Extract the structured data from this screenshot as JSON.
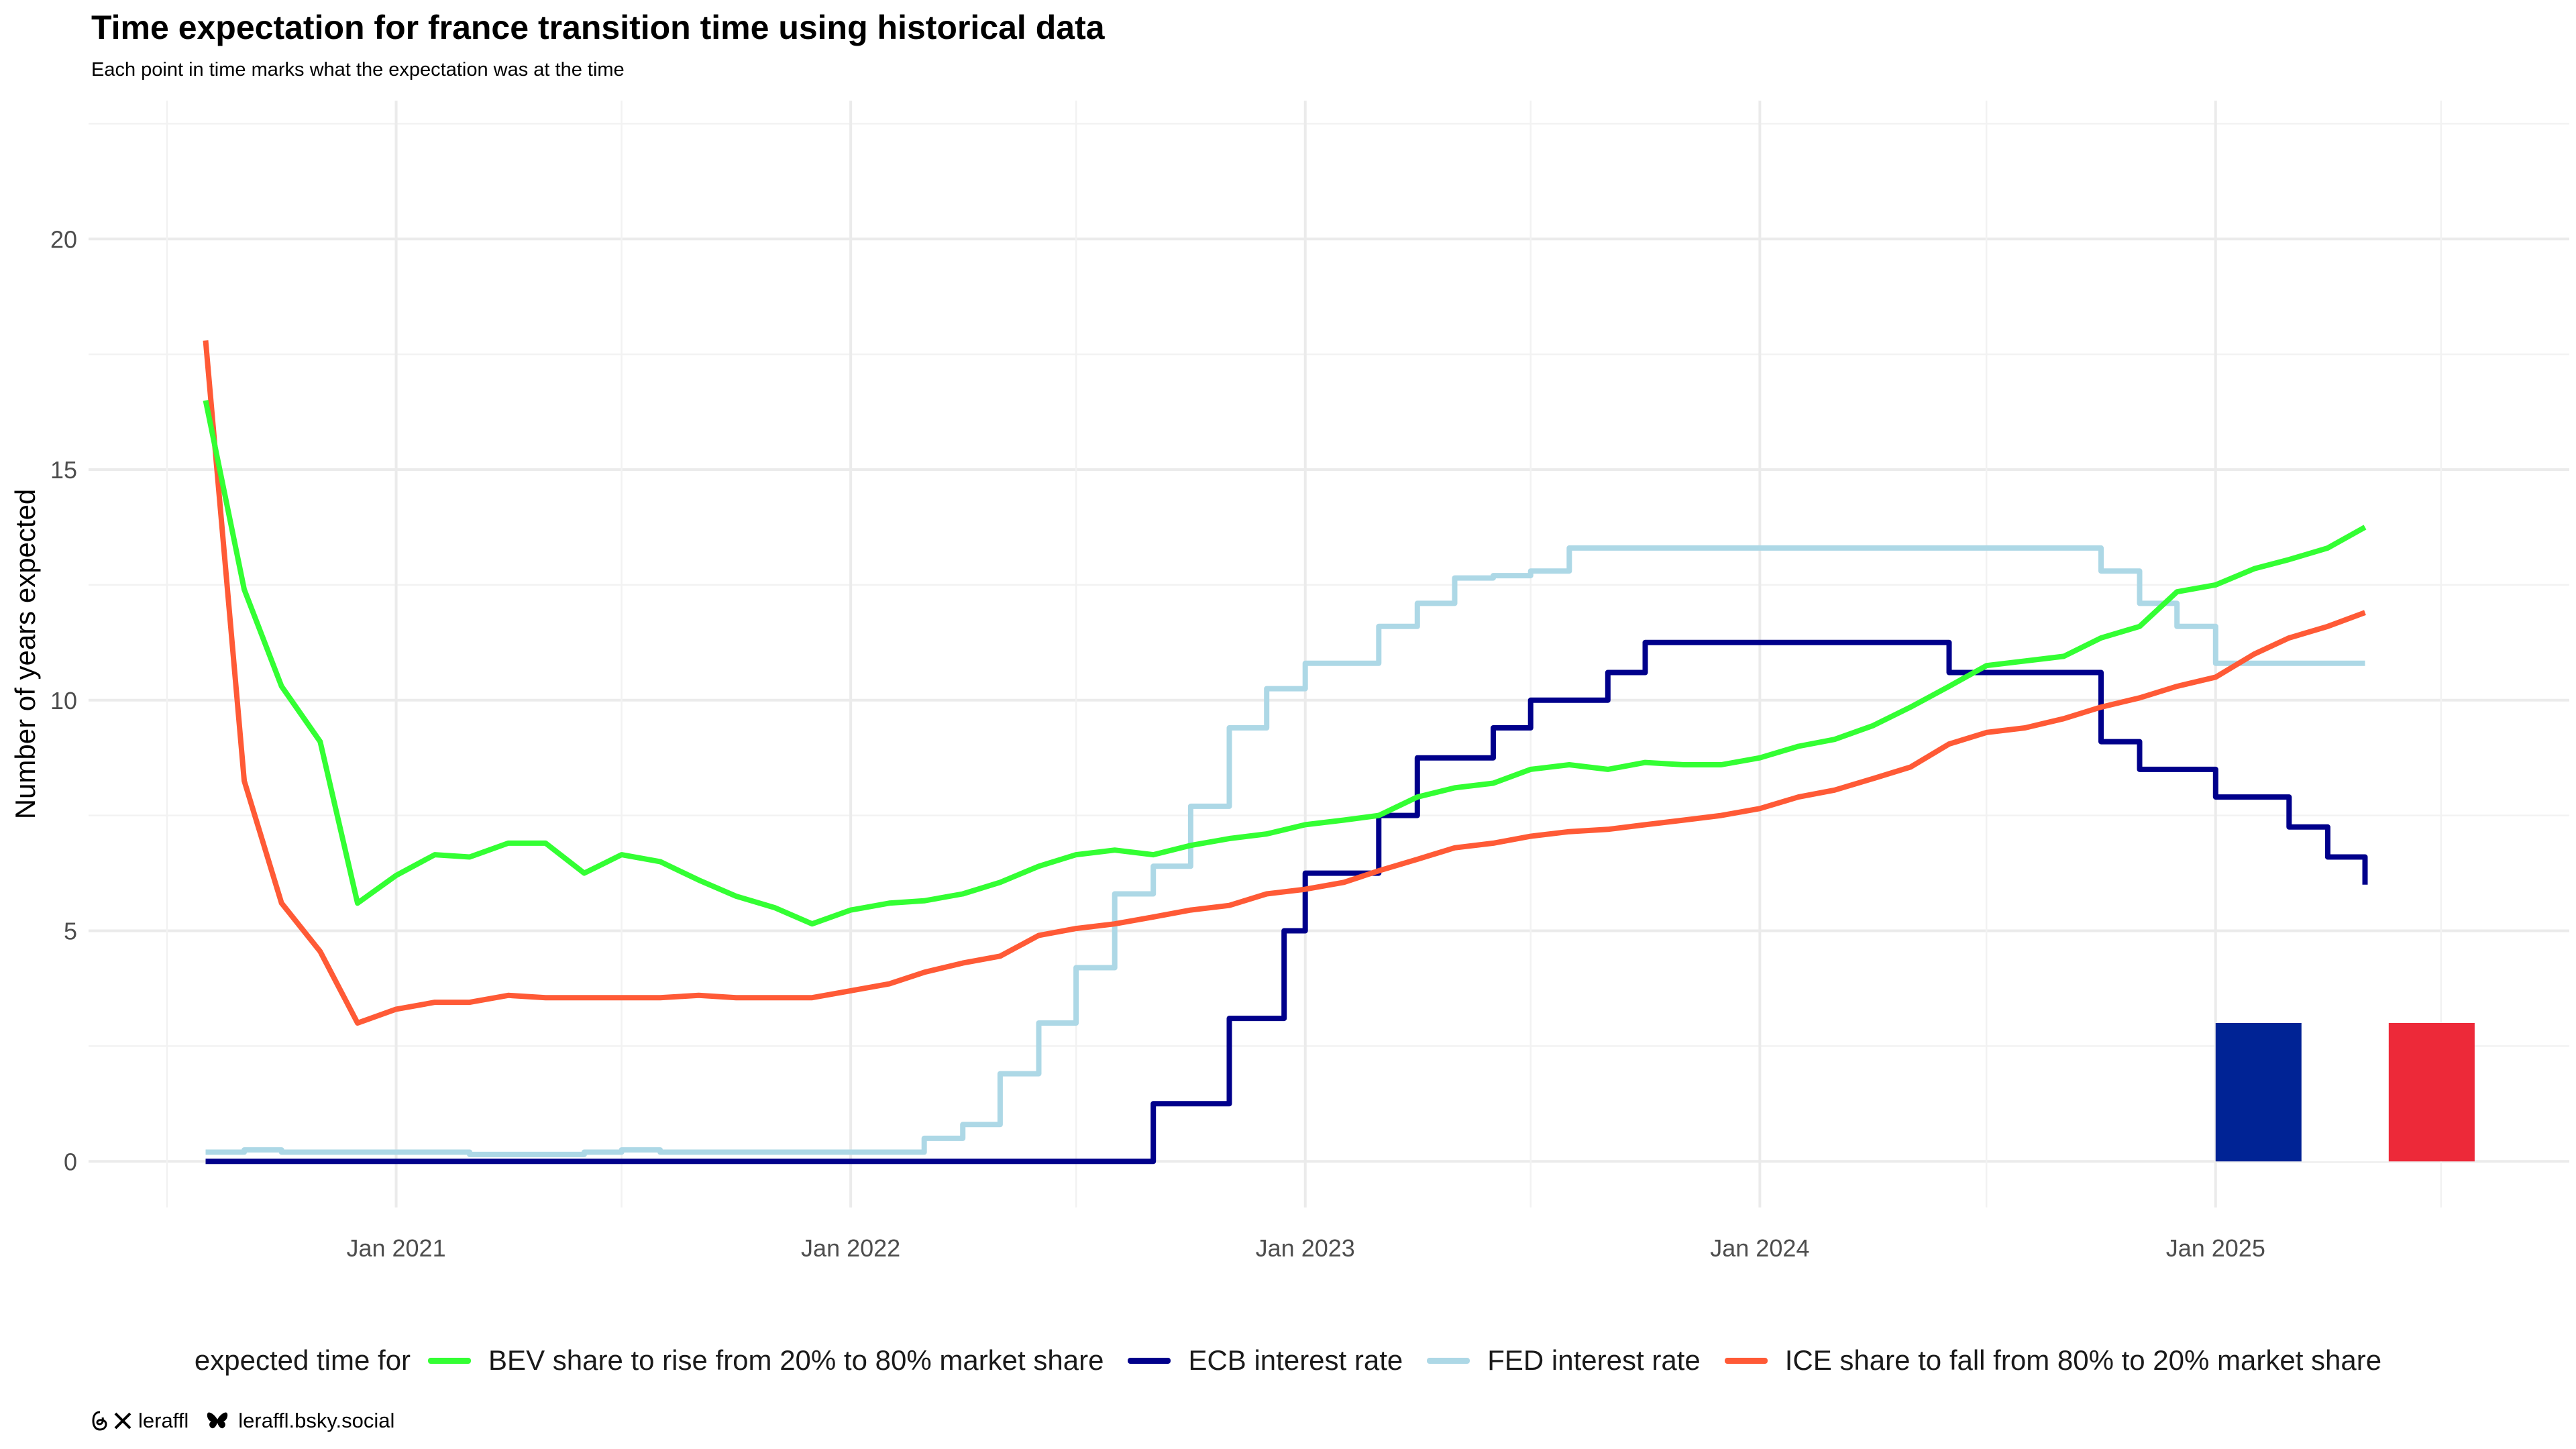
{
  "chart_data": {
    "type": "line",
    "title": "Time expectation for france transition time using historical data",
    "subtitle": "Each point in time marks what the expectation was at the time",
    "xlabel": "",
    "ylabel": "Number of years expected",
    "x_ticks": [
      "Jan 2021",
      "Jan 2022",
      "Jan 2023",
      "Jan 2024",
      "Jan 2025"
    ],
    "y_ticks": [
      "0",
      "5",
      "10",
      "15",
      "20"
    ],
    "ylim": [
      -1,
      23
    ],
    "xlim": [
      "2020-04-29",
      "2025-10-12"
    ],
    "grid": true,
    "legend_position": "bottom",
    "legend_title": "expected time for",
    "series": [
      {
        "name": "BEV share to rise from 20% to 80% market share",
        "color": "#33ff33",
        "step": false,
        "points": [
          [
            "2020-08-01",
            16.5
          ],
          [
            "2020-09-01",
            12.4
          ],
          [
            "2020-10-01",
            10.3
          ],
          [
            "2020-11-01",
            9.1
          ],
          [
            "2020-12-01",
            5.6
          ],
          [
            "2021-01-01",
            6.2
          ],
          [
            "2021-02-01",
            6.65
          ],
          [
            "2021-03-01",
            6.6
          ],
          [
            "2021-04-01",
            6.9
          ],
          [
            "2021-05-01",
            6.9
          ],
          [
            "2021-06-01",
            6.25
          ],
          [
            "2021-07-01",
            6.65
          ],
          [
            "2021-08-01",
            6.5
          ],
          [
            "2021-09-01",
            6.1
          ],
          [
            "2021-10-01",
            5.75
          ],
          [
            "2021-11-01",
            5.5
          ],
          [
            "2021-12-01",
            5.15
          ],
          [
            "2022-01-01",
            5.45
          ],
          [
            "2022-02-01",
            5.6
          ],
          [
            "2022-03-01",
            5.65
          ],
          [
            "2022-04-01",
            5.8
          ],
          [
            "2022-05-01",
            6.05
          ],
          [
            "2022-06-01",
            6.4
          ],
          [
            "2022-07-01",
            6.65
          ],
          [
            "2022-08-01",
            6.75
          ],
          [
            "2022-09-01",
            6.65
          ],
          [
            "2022-10-01",
            6.85
          ],
          [
            "2022-11-01",
            7.0
          ],
          [
            "2022-12-01",
            7.1
          ],
          [
            "2023-01-01",
            7.3
          ],
          [
            "2023-02-01",
            7.4
          ],
          [
            "2023-03-01",
            7.5
          ],
          [
            "2023-04-01",
            7.9
          ],
          [
            "2023-05-01",
            8.1
          ],
          [
            "2023-06-01",
            8.2
          ],
          [
            "2023-07-01",
            8.5
          ],
          [
            "2023-08-01",
            8.6
          ],
          [
            "2023-09-01",
            8.5
          ],
          [
            "2023-10-01",
            8.65
          ],
          [
            "2023-11-01",
            8.6
          ],
          [
            "2023-12-01",
            8.6
          ],
          [
            "2024-01-01",
            8.75
          ],
          [
            "2024-02-01",
            9.0
          ],
          [
            "2024-03-01",
            9.15
          ],
          [
            "2024-04-01",
            9.45
          ],
          [
            "2024-05-01",
            9.85
          ],
          [
            "2024-06-01",
            10.3
          ],
          [
            "2024-07-01",
            10.75
          ],
          [
            "2024-08-01",
            10.85
          ],
          [
            "2024-09-01",
            10.95
          ],
          [
            "2024-10-01",
            11.35
          ],
          [
            "2024-11-01",
            11.6
          ],
          [
            "2024-12-01",
            12.35
          ],
          [
            "2025-01-01",
            12.5
          ],
          [
            "2025-02-01",
            12.85
          ],
          [
            "2025-03-01",
            13.05
          ],
          [
            "2025-04-01",
            13.3
          ],
          [
            "2025-05-01",
            13.75
          ]
        ]
      },
      {
        "name": "ECB interest rate",
        "color": "#00008b",
        "step": true,
        "points": [
          [
            "2020-08-01",
            0.0
          ],
          [
            "2022-08-01",
            0.0
          ],
          [
            "2022-09-01",
            1.25
          ],
          [
            "2022-11-01",
            3.1
          ],
          [
            "2022-12-15",
            5.0
          ],
          [
            "2023-01-01",
            6.25
          ],
          [
            "2023-03-01",
            7.5
          ],
          [
            "2023-04-01",
            8.75
          ],
          [
            "2023-06-01",
            9.4
          ],
          [
            "2023-07-01",
            10.0
          ],
          [
            "2023-09-01",
            10.6
          ],
          [
            "2023-10-01",
            11.25
          ],
          [
            "2024-06-01",
            10.6
          ],
          [
            "2024-10-01",
            9.1
          ],
          [
            "2024-11-01",
            8.5
          ],
          [
            "2025-01-01",
            7.9
          ],
          [
            "2025-03-01",
            7.25
          ],
          [
            "2025-04-01",
            6.6
          ],
          [
            "2025-05-01",
            6.0
          ]
        ]
      },
      {
        "name": "FED interest rate",
        "color": "#add8e6",
        "step": true,
        "points": [
          [
            "2020-08-01",
            0.2
          ],
          [
            "2020-09-01",
            0.25
          ],
          [
            "2020-10-01",
            0.2
          ],
          [
            "2021-03-01",
            0.15
          ],
          [
            "2021-06-01",
            0.2
          ],
          [
            "2021-07-01",
            0.25
          ],
          [
            "2021-08-01",
            0.2
          ],
          [
            "2021-09-01",
            0.2
          ],
          [
            "2022-03-01",
            0.5
          ],
          [
            "2022-04-01",
            0.8
          ],
          [
            "2022-05-01",
            1.9
          ],
          [
            "2022-06-01",
            3.0
          ],
          [
            "2022-07-01",
            4.2
          ],
          [
            "2022-08-01",
            5.8
          ],
          [
            "2022-09-01",
            6.4
          ],
          [
            "2022-10-01",
            7.7
          ],
          [
            "2022-11-01",
            9.4
          ],
          [
            "2022-12-01",
            10.25
          ],
          [
            "2023-01-01",
            10.8
          ],
          [
            "2023-03-01",
            11.6
          ],
          [
            "2023-04-01",
            12.1
          ],
          [
            "2023-05-01",
            12.65
          ],
          [
            "2023-06-01",
            12.7
          ],
          [
            "2023-07-01",
            12.8
          ],
          [
            "2023-08-01",
            13.3
          ],
          [
            "2024-10-01",
            12.8
          ],
          [
            "2024-11-01",
            12.1
          ],
          [
            "2024-12-01",
            11.6
          ],
          [
            "2025-01-01",
            10.8
          ],
          [
            "2025-05-01",
            10.8
          ]
        ]
      },
      {
        "name": "ICE share to fall from 80% to 20% market share",
        "color": "#ff5a36",
        "step": false,
        "points": [
          [
            "2020-08-01",
            17.8
          ],
          [
            "2020-09-01",
            8.25
          ],
          [
            "2020-10-01",
            5.6
          ],
          [
            "2020-11-01",
            4.55
          ],
          [
            "2020-12-01",
            3.0
          ],
          [
            "2021-01-01",
            3.3
          ],
          [
            "2021-02-01",
            3.45
          ],
          [
            "2021-03-01",
            3.45
          ],
          [
            "2021-04-01",
            3.6
          ],
          [
            "2021-05-01",
            3.55
          ],
          [
            "2021-06-01",
            3.55
          ],
          [
            "2021-07-01",
            3.55
          ],
          [
            "2021-08-01",
            3.55
          ],
          [
            "2021-09-01",
            3.6
          ],
          [
            "2021-10-01",
            3.55
          ],
          [
            "2021-11-01",
            3.55
          ],
          [
            "2021-12-01",
            3.55
          ],
          [
            "2022-01-01",
            3.7
          ],
          [
            "2022-02-01",
            3.85
          ],
          [
            "2022-03-01",
            4.1
          ],
          [
            "2022-04-01",
            4.3
          ],
          [
            "2022-05-01",
            4.45
          ],
          [
            "2022-06-01",
            4.9
          ],
          [
            "2022-07-01",
            5.05
          ],
          [
            "2022-08-01",
            5.15
          ],
          [
            "2022-09-01",
            5.3
          ],
          [
            "2022-10-01",
            5.45
          ],
          [
            "2022-11-01",
            5.55
          ],
          [
            "2022-12-01",
            5.8
          ],
          [
            "2023-01-01",
            5.9
          ],
          [
            "2023-02-01",
            6.05
          ],
          [
            "2023-03-01",
            6.3
          ],
          [
            "2023-04-01",
            6.55
          ],
          [
            "2023-05-01",
            6.8
          ],
          [
            "2023-06-01",
            6.9
          ],
          [
            "2023-07-01",
            7.05
          ],
          [
            "2023-08-01",
            7.15
          ],
          [
            "2023-09-01",
            7.2
          ],
          [
            "2023-10-01",
            7.3
          ],
          [
            "2023-11-01",
            7.4
          ],
          [
            "2023-12-01",
            7.5
          ],
          [
            "2024-01-01",
            7.65
          ],
          [
            "2024-02-01",
            7.9
          ],
          [
            "2024-03-01",
            8.05
          ],
          [
            "2024-04-01",
            8.3
          ],
          [
            "2024-05-01",
            8.55
          ],
          [
            "2024-06-01",
            9.05
          ],
          [
            "2024-07-01",
            9.3
          ],
          [
            "2024-08-01",
            9.4
          ],
          [
            "2024-09-01",
            9.6
          ],
          [
            "2024-10-01",
            9.85
          ],
          [
            "2024-11-01",
            10.05
          ],
          [
            "2024-12-01",
            10.3
          ],
          [
            "2025-01-01",
            10.5
          ],
          [
            "2025-02-01",
            11.0
          ],
          [
            "2025-03-01",
            11.35
          ],
          [
            "2025-04-01",
            11.6
          ],
          [
            "2025-05-01",
            11.9
          ]
        ]
      }
    ]
  },
  "flag": {
    "name": "france-flag",
    "colors": [
      "#002395",
      "#ffffff",
      "#ED2939"
    ]
  },
  "credits": {
    "handle": "leraffl",
    "bluesky": "leraffl.bsky.social"
  }
}
